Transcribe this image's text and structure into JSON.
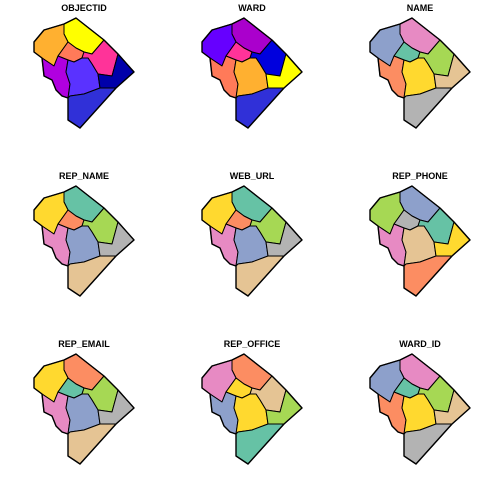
{
  "panels": [
    {
      "title": "OBJECTID",
      "fills": [
        "#ffff00",
        "#ffb030",
        "#ff7a59",
        "#ff3399",
        "#b000e0",
        "#5a32ff",
        "#0000aa",
        "#3030d8"
      ]
    },
    {
      "title": "WARD",
      "fills": [
        "#aa00cc",
        "#6600ff",
        "#ff3399",
        "#0000dd",
        "#ff7a59",
        "#ffb030",
        "#ffff00",
        "#3030d8"
      ]
    },
    {
      "title": "NAME",
      "fills": [
        "#e78ac3",
        "#8da0cb",
        "#66c2a5",
        "#a6d854",
        "#fc8d62",
        "#ffd92f",
        "#e5c494",
        "#b3b3b3"
      ]
    },
    {
      "title": "REP_NAME",
      "fills": [
        "#66c2a5",
        "#ffd92f",
        "#fc8d62",
        "#a6d854",
        "#e78ac3",
        "#8da0cb",
        "#b3b3b3",
        "#e5c494"
      ]
    },
    {
      "title": "WEB_URL",
      "fills": [
        "#66c2a5",
        "#ffd92f",
        "#fc8d62",
        "#a6d854",
        "#e78ac3",
        "#8da0cb",
        "#b3b3b3",
        "#e5c494"
      ]
    },
    {
      "title": "REP_PHONE",
      "fills": [
        "#8da0cb",
        "#a6d854",
        "#b3b3b3",
        "#66c2a5",
        "#e78ac3",
        "#e5c494",
        "#ffd92f",
        "#fc8d62"
      ]
    },
    {
      "title": "REP_EMAIL",
      "fills": [
        "#fc8d62",
        "#ffd92f",
        "#66c2a5",
        "#a6d854",
        "#e78ac3",
        "#8da0cb",
        "#b3b3b3",
        "#e5c494"
      ]
    },
    {
      "title": "REP_OFFICE",
      "fills": [
        "#fc8d62",
        "#e78ac3",
        "#ffd92f",
        "#e5c494",
        "#8da0cb",
        "#ffd92f",
        "#a6d854",
        "#66c2a5"
      ]
    },
    {
      "title": "WARD_ID",
      "fills": [
        "#e78ac3",
        "#8da0cb",
        "#66c2a5",
        "#a6d854",
        "#fc8d62",
        "#ffd92f",
        "#e5c494",
        "#b3b3b3"
      ]
    }
  ]
}
